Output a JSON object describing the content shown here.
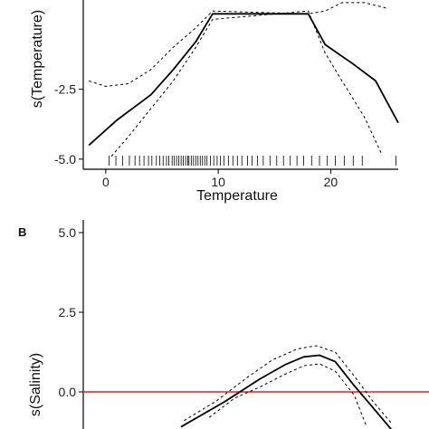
{
  "colors": {
    "axis": "#000000",
    "fit": "#000000",
    "ci": "#000000",
    "zero_line": "#d62728",
    "rug": "#000000"
  },
  "chart_data": [
    {
      "type": "line",
      "panel": "",
      "xlabel": "Temperature",
      "ylabel": "s(Temperature)",
      "xlim": [
        -2,
        26
      ],
      "x_ticks": [
        0,
        10,
        20
      ],
      "x_tick_labels": [
        "0",
        "10",
        "20"
      ],
      "y_ticks": [
        -2.5,
        -5.0
      ],
      "y_tick_labels": [
        "-2.5",
        "-5.0"
      ],
      "series": [
        {
          "role": "fit",
          "x": [
            -1.5,
            1,
            4,
            6,
            8,
            9.5,
            18,
            19.5,
            22,
            24,
            26
          ],
          "y": [
            -4.5,
            -3.6,
            -2.7,
            -1.8,
            -0.8,
            0.2,
            0.2,
            -0.9,
            -1.6,
            -2.2,
            -3.7
          ]
        },
        {
          "role": "ci-upper",
          "x": [
            -1.5,
            0,
            2,
            4,
            6,
            8,
            9.5,
            18,
            19.5,
            21,
            23,
            25
          ],
          "y": [
            -2.2,
            -2.4,
            -2.3,
            -1.8,
            -1.0,
            -0.3,
            0.3,
            0.2,
            0.3,
            0.6,
            0.6,
            0.4
          ]
        },
        {
          "role": "ci-lower",
          "x": [
            0.5,
            2,
            4,
            6,
            8,
            9.5,
            18,
            19.5,
            21,
            23,
            24.5
          ],
          "y": [
            -4.9,
            -4.2,
            -3.2,
            -2.2,
            -1.0,
            0.0,
            0.3,
            -1.2,
            -2.2,
            -3.5,
            -4.8
          ]
        }
      ],
      "rug": [
        0.3,
        0.9,
        1.5,
        2.1,
        2.6,
        3.0,
        3.4,
        3.8,
        4.1,
        4.5,
        4.8,
        5.1,
        5.4,
        5.6,
        5.9,
        6.1,
        6.3,
        6.5,
        6.7,
        6.9,
        7.1,
        7.3,
        7.4,
        7.6,
        7.8,
        8.0,
        8.2,
        8.4,
        8.6,
        8.8,
        9.0,
        9.3,
        9.6,
        9.9,
        10.2,
        10.5,
        10.9,
        11.3,
        11.7,
        12.1,
        12.6,
        13.0,
        13.5,
        14.0,
        14.6,
        15.2,
        15.8,
        16.4,
        17.0,
        17.6,
        18.3,
        19.0,
        19.7,
        20.4,
        21.2,
        22.0,
        22.8,
        25.8
      ]
    },
    {
      "type": "line",
      "panel": "B",
      "xlabel": "",
      "ylabel": "s(Salinity)",
      "xlim": [
        0,
        1
      ],
      "y_ticks": [
        5.0,
        2.5,
        0.0
      ],
      "y_tick_labels": [
        "5.0",
        "2.5",
        "0.0"
      ],
      "reference_line": 0.0,
      "series": [
        {
          "role": "fit",
          "x": [
            0.31,
            0.45,
            0.56,
            0.64,
            0.7,
            0.75,
            0.8,
            0.86,
            0.92,
            0.98
          ],
          "y": [
            -1.1,
            -0.3,
            0.4,
            0.85,
            1.1,
            1.15,
            0.95,
            0.2,
            -0.5,
            -1.2
          ]
        },
        {
          "role": "ci-upper",
          "x": [
            0.32,
            0.42,
            0.52,
            0.6,
            0.68,
            0.74,
            0.8,
            0.86,
            0.92,
            0.98
          ],
          "y": [
            -0.9,
            -0.3,
            0.45,
            1.0,
            1.35,
            1.45,
            1.25,
            0.5,
            -0.3,
            -1.0
          ]
        },
        {
          "role": "ci-lower",
          "x": [
            0.4,
            0.48,
            0.56,
            0.64,
            0.7,
            0.75,
            0.8,
            0.86,
            0.9
          ],
          "y": [
            -0.8,
            -0.2,
            0.15,
            0.55,
            0.82,
            0.88,
            0.65,
            -0.1,
            -1.1
          ]
        }
      ]
    }
  ]
}
